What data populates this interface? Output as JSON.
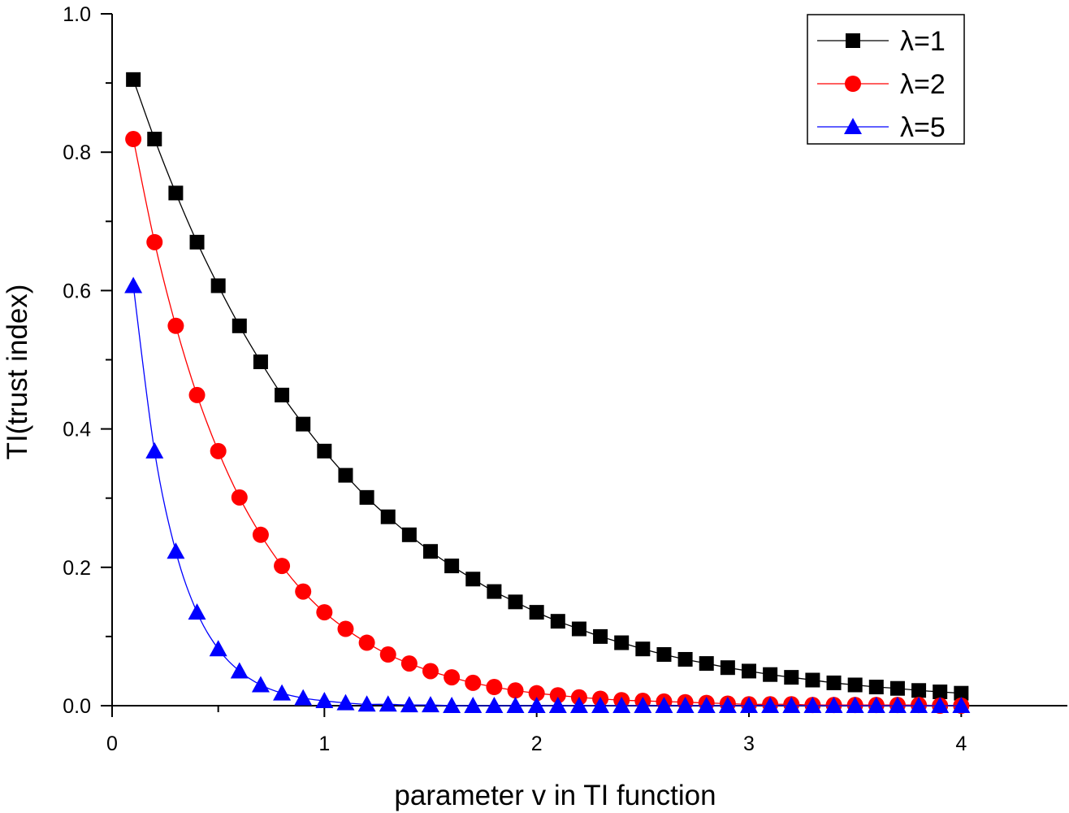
{
  "chart_data": {
    "type": "line",
    "xlabel": "parameter v in TI function",
    "ylabel": "TI(trust index)",
    "xlim": [
      0,
      4.5
    ],
    "ylim": [
      0,
      1.0
    ],
    "x_ticks": [
      "0",
      "1",
      "2",
      "3",
      "4"
    ],
    "y_ticks": [
      "0.0",
      "0.2",
      "0.4",
      "0.6",
      "0.8",
      "1.0"
    ],
    "grid": false,
    "legend_position": "top-right",
    "x": [
      0.1,
      0.2,
      0.3,
      0.4,
      0.5,
      0.6,
      0.7,
      0.8,
      0.9,
      1.0,
      1.1,
      1.2,
      1.3,
      1.4,
      1.5,
      1.6,
      1.7,
      1.8,
      1.9,
      2.0,
      2.1,
      2.2,
      2.3,
      2.4,
      2.5,
      2.6,
      2.7,
      2.8,
      2.9,
      3.0,
      3.1,
      3.2,
      3.3,
      3.4,
      3.5,
      3.6,
      3.7,
      3.8,
      3.9,
      4.0
    ],
    "series": [
      {
        "name": "λ=1",
        "color": "#000000",
        "marker": "square",
        "values": [
          0.905,
          0.819,
          0.741,
          0.67,
          0.607,
          0.549,
          0.497,
          0.449,
          0.407,
          0.368,
          0.333,
          0.301,
          0.273,
          0.247,
          0.223,
          0.202,
          0.183,
          0.165,
          0.15,
          0.135,
          0.122,
          0.111,
          0.1,
          0.091,
          0.082,
          0.074,
          0.067,
          0.061,
          0.055,
          0.05,
          0.045,
          0.041,
          0.037,
          0.033,
          0.03,
          0.027,
          0.025,
          0.022,
          0.02,
          0.018
        ]
      },
      {
        "name": "λ=2",
        "color": "#ff0000",
        "marker": "circle",
        "values": [
          0.819,
          0.67,
          0.549,
          0.449,
          0.368,
          0.301,
          0.247,
          0.202,
          0.165,
          0.135,
          0.111,
          0.091,
          0.074,
          0.061,
          0.05,
          0.041,
          0.033,
          0.027,
          0.022,
          0.018,
          0.015,
          0.012,
          0.01,
          0.008,
          0.007,
          0.006,
          0.005,
          0.004,
          0.003,
          0.002,
          0.002,
          0.002,
          0.001,
          0.001,
          0.001,
          0.001,
          0.001,
          0.001,
          0.0,
          0.0
        ]
      },
      {
        "name": "λ=5",
        "color": "#0000ff",
        "marker": "triangle",
        "values": [
          0.607,
          0.368,
          0.223,
          0.135,
          0.082,
          0.05,
          0.03,
          0.018,
          0.011,
          0.007,
          0.004,
          0.002,
          0.002,
          0.001,
          0.001,
          0.0,
          0.0,
          0.0,
          0.0,
          0.0,
          0.0,
          0.0,
          0.0,
          0.0,
          0.0,
          0.0,
          0.0,
          0.0,
          0.0,
          0.0,
          0.0,
          0.0,
          0.0,
          0.0,
          0.0,
          0.0,
          0.0,
          0.0,
          0.0,
          0.0
        ]
      }
    ]
  }
}
